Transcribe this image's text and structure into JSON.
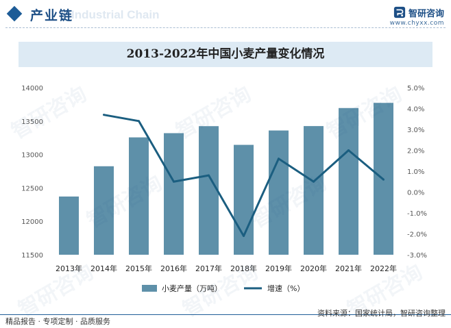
{
  "header": {
    "section_title": "产业链",
    "ghost_text": "Industrial Chain",
    "brand_name": "智研咨询",
    "brand_url": "www.chyxx.com"
  },
  "watermark": {
    "text": "智研咨询"
  },
  "footer": {
    "left": "精品报告 · 专项定制 · 品质服务",
    "right": "资料来源：国家统计局，智研咨询整理"
  },
  "colors": {
    "bar": "#5e90a9",
    "line": "#1b5e80",
    "title_band": "#ddeaf4",
    "brand": "#1d4f86"
  },
  "chart_data": {
    "type": "bar",
    "title": "2013-2022年中国小麦产量变化情况",
    "categories": [
      "2013年",
      "2014年",
      "2015年",
      "2016年",
      "2017年",
      "2018年",
      "2019年",
      "2020年",
      "2021年",
      "2022年"
    ],
    "series": [
      {
        "name": "小麦产量（万吨）",
        "type": "bar",
        "axis": "left",
        "values": [
          12371,
          12824,
          13256,
          13319,
          13424,
          13144,
          13359,
          13425,
          13695,
          13772
        ]
      },
      {
        "name": "增速（%）",
        "type": "line",
        "axis": "right",
        "values": [
          null,
          3.7,
          3.4,
          0.5,
          0.8,
          -2.1,
          1.6,
          0.5,
          2.0,
          0.6
        ]
      }
    ],
    "left_axis": {
      "min": 11500,
      "max": 14000,
      "step": 500,
      "ticks": [
        "11500",
        "12000",
        "12500",
        "13000",
        "13500",
        "14000"
      ]
    },
    "right_axis": {
      "min": -3.0,
      "max": 5.0,
      "step": 1.0,
      "ticks": [
        "-3.0%",
        "-2.0%",
        "-1.0%",
        "0.0%",
        "1.0%",
        "2.0%",
        "3.0%",
        "4.0%",
        "5.0%"
      ]
    },
    "legend": {
      "placement": "bottom-center",
      "bar_label": "小麦产量（万吨）",
      "line_label": "增速（%）"
    },
    "grid": false
  }
}
